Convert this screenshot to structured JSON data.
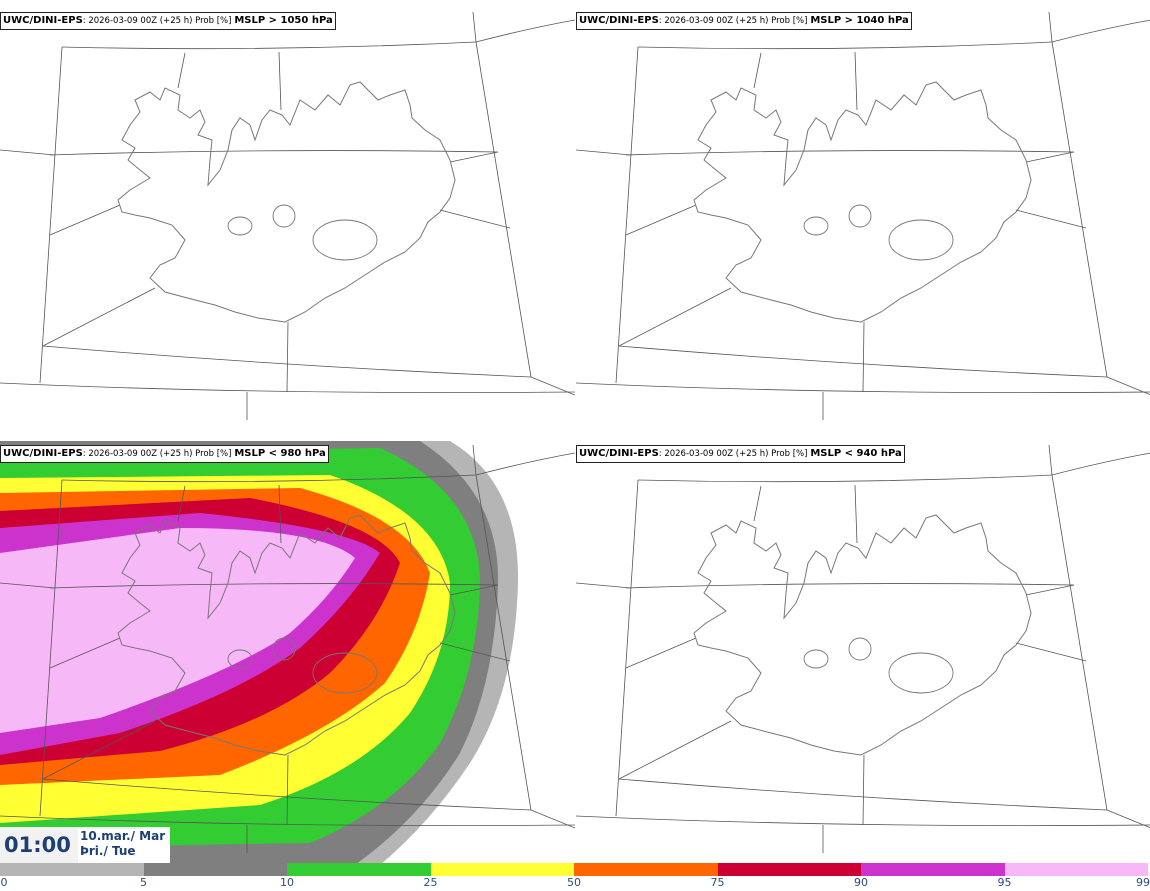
{
  "panels": [
    {
      "model": "UWC/DINI-EPS",
      "run": ": 2026-03-09 00Z (+25 h) Prob [%]",
      "threshold": "MSLP > 1050 hPa",
      "has_field": false
    },
    {
      "model": "UWC/DINI-EPS",
      "run": ": 2026-03-09 00Z (+25 h) Prob [%]",
      "threshold": "MSLP > 1040 hPa",
      "has_field": false
    },
    {
      "model": "UWC/DINI-EPS",
      "run": ": 2026-03-09 00Z (+25 h) Prob [%]",
      "threshold": "MSLP < 980 hPa",
      "has_field": true
    },
    {
      "model": "UWC/DINI-EPS",
      "run": ": 2026-03-09 00Z (+25 h) Prob [%]",
      "threshold": "MSLP < 940 hPa",
      "has_field": false
    }
  ],
  "valid_time": {
    "time": "01:00",
    "date": "10.mar./ Mar",
    "day": "Þri./ Tue"
  },
  "legend": {
    "ticks": [
      "0",
      "5",
      "10",
      "25",
      "50",
      "75",
      "90",
      "95",
      "99"
    ],
    "colors": [
      "#ffffff",
      "#b5b5b5",
      "#7f7f7f",
      "#33cc33",
      "#ffff33",
      "#ff6600",
      "#cc0033",
      "#cc33cc",
      "#f7b8f7"
    ]
  },
  "colors": {
    "coast": "#777777",
    "grid": "#555555",
    "title_text": "#000000",
    "time_text": "#1d3f73"
  }
}
